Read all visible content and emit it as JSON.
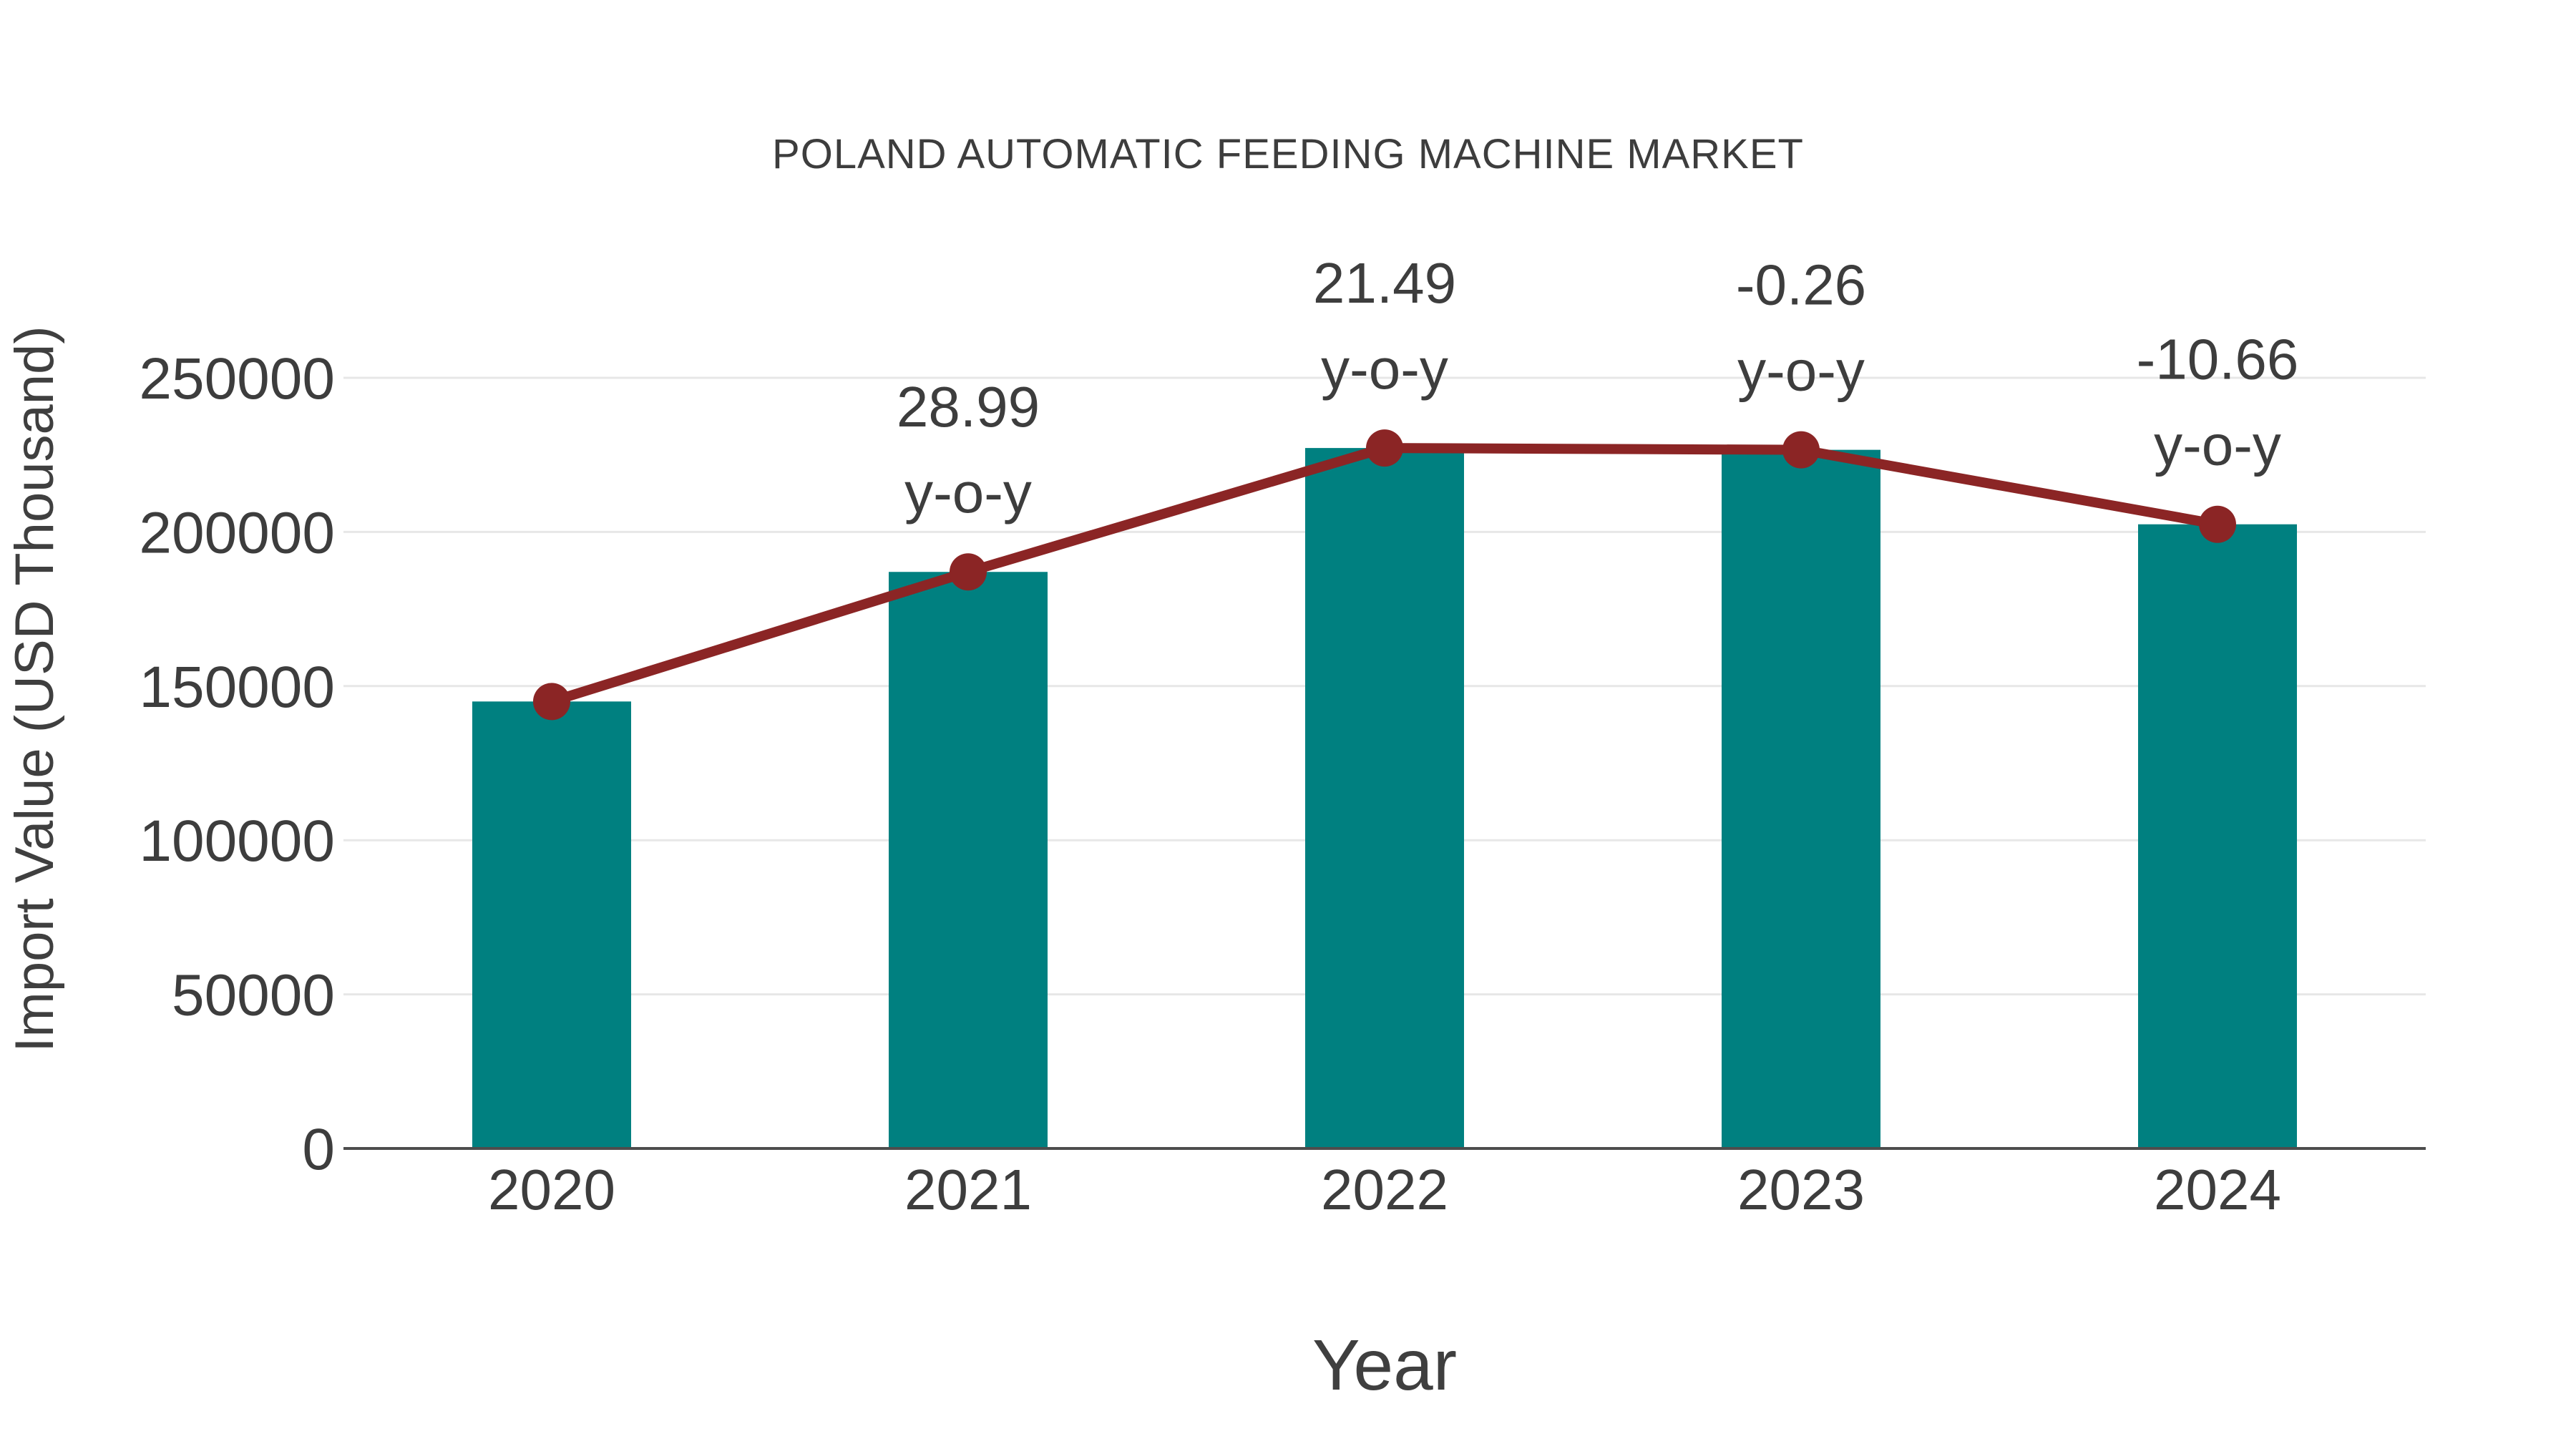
{
  "chart_data": {
    "type": "bar",
    "title": "POLAND AUTOMATIC FEEDING MACHINE MARKET",
    "xlabel": "Year",
    "ylabel": "Import Value (USD Thousand)",
    "categories": [
      "2020",
      "2021",
      "2022",
      "2023",
      "2024"
    ],
    "series": [
      {
        "name": "Import Value",
        "type": "bar",
        "color": "#008080",
        "values": [
          145000,
          187036,
          227230,
          226639,
          202480
        ]
      },
      {
        "name": "Trend",
        "type": "line",
        "color": "#8B2525",
        "values": [
          145000,
          187036,
          227230,
          226639,
          202480
        ]
      }
    ],
    "annotations": [
      {
        "category": "2021",
        "line1": "28.99",
        "line2": "y-o-y"
      },
      {
        "category": "2022",
        "line1": "21.49",
        "line2": "y-o-y"
      },
      {
        "category": "2023",
        "line1": "-0.26",
        "line2": "y-o-y"
      },
      {
        "category": "2024",
        "line1": "-10.66",
        "line2": "y-o-y"
      }
    ],
    "yticks": [
      0,
      50000,
      100000,
      150000,
      200000,
      250000
    ],
    "ylim": [
      0,
      250000
    ],
    "grid": true,
    "legend": false,
    "colors": {
      "bar": "#008080",
      "line": "#8B2525",
      "grid": "#e7e7e7",
      "axis": "#4d4d4d",
      "text": "#3d3d3d"
    }
  }
}
